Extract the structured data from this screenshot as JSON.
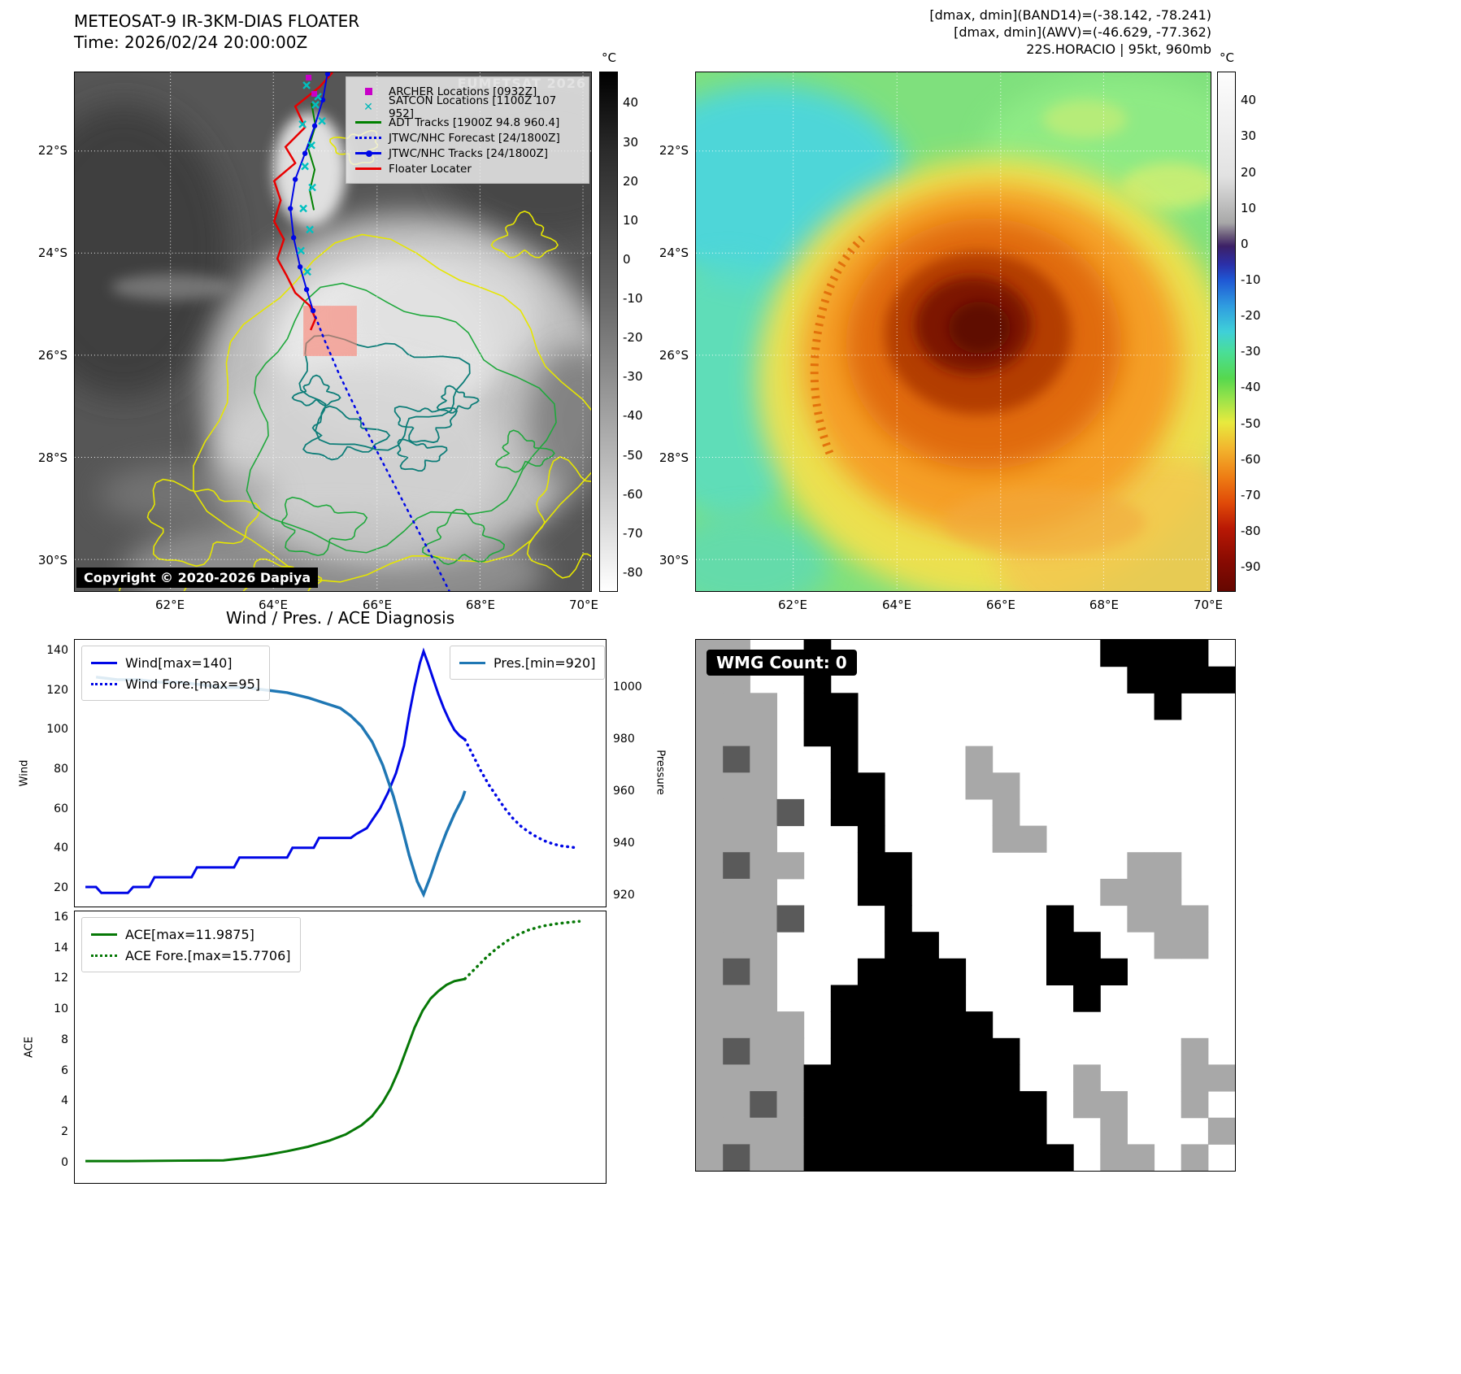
{
  "meteosat_panel": {
    "title": "METEOSAT-9 IR-3KM-DIAS FLOATER",
    "time": "Time: 2026/02/24 20:00:00Z",
    "watermark": "EUMETSAT 2026",
    "copyright": "Copyright © 2020-2026 Dapiya",
    "colorbar": {
      "unit": "°C",
      "vmax": 48,
      "vmin": -85,
      "ticks": [
        40,
        30,
        20,
        10,
        0,
        -10,
        -20,
        -30,
        -40,
        -50,
        -60,
        -70,
        -80
      ]
    },
    "lat_ticks": [
      "22°S",
      "24°S",
      "26°S",
      "28°S",
      "30°S"
    ],
    "lon_ticks": [
      "62°E",
      "64°E",
      "66°E",
      "68°E",
      "70°E"
    ],
    "legend": [
      {
        "label": "ARCHER Locations [0932Z]",
        "marker": "square",
        "color": "#c800c8"
      },
      {
        "label": "SATCON Locations [1100Z 107 952]",
        "marker": "x",
        "color": "#00b8b8"
      },
      {
        "label": "ADT Tracks [1900Z 94.8 960.4]",
        "marker": "line",
        "color": "#008000"
      },
      {
        "label": "JTWC/NHC Forecast [24/1800Z]",
        "marker": "dotted",
        "color": "#0007e6"
      },
      {
        "label": "JTWC/NHC Tracks [24/1800Z]",
        "marker": "line-dot",
        "color": "#0007e6"
      },
      {
        "label": "Floater Locater",
        "marker": "line",
        "color": "#e80000"
      }
    ]
  },
  "ir_panel": {
    "header": [
      "[dmax, dmin](BAND14)=(-38.142, -78.241)",
      "[dmax, dmin](AWV)=(-46.629, -77.362)",
      "22S.HORACIO | 95kt, 960mb"
    ],
    "colorbar": {
      "unit": "°C",
      "vmax": 48,
      "vmin": -97,
      "ticks": [
        40,
        30,
        20,
        10,
        0,
        -10,
        -20,
        -30,
        -40,
        -50,
        -60,
        -70,
        -80,
        -90
      ]
    },
    "lat_ticks": [
      "22°S",
      "24°S",
      "26°S",
      "28°S",
      "30°S"
    ],
    "lon_ticks": [
      "62°E",
      "64°E",
      "66°E",
      "68°E",
      "70°E"
    ]
  },
  "wmg_panel": {
    "label": "WMG Count: 0",
    "palette": {
      ".": "#ffffff",
      "g": "#a8a8a8",
      "G": "#5a5a5a",
      "#": "#000000"
    },
    "grid": [
      "gg..#..........####.",
      "gg..#...........####",
      "ggg.##...........#..",
      "ggg.##..............",
      "gGg..#....g.........",
      "ggg..##...gg........",
      "gggG.##....g........",
      "ggg...#....gg.......",
      "gGgg..##........gg..",
      "ggg...##.......ggg..",
      "gggG...#.....#..ggg.",
      "ggg....##....##..gg.",
      "gGg...####...###....",
      "ggg..#####....#.....",
      "gggg.######.........",
      "gGgg.#######......g.",
      "gggg########..g...gg",
      "ggGg#########.gg..g.",
      "gggg#########..g...g",
      "gGgg##########.gg.g."
    ]
  },
  "chart_data": [
    {
      "type": "line",
      "title": "Wind / Pres. / ACE Diagnosis",
      "ylabel_left": "Wind",
      "ylabel_right": "Pressure",
      "xlim": [
        0,
        100
      ],
      "ylim_left": [
        10.1,
        145.8
      ],
      "yticks_left": [
        20,
        40,
        60,
        80,
        100,
        120,
        140
      ],
      "ylim_right": [
        915.3,
        1018.4
      ],
      "yticks_right": [
        920,
        940,
        960,
        980,
        1000
      ],
      "series": [
        {
          "name": "Wind[max=140]",
          "color": "#0007e6",
          "style": "solid",
          "axis": "left",
          "width": 3,
          "x": [
            2,
            4,
            5,
            10,
            11,
            14,
            15,
            22,
            23,
            30,
            31,
            40,
            41,
            45,
            46,
            52,
            53,
            55,
            56,
            57.5,
            59,
            60.5,
            62,
            63,
            64,
            65,
            65.7,
            66.5,
            67.5,
            68.5,
            69.5,
            70.5,
            71.5,
            72.5,
            73.5
          ],
          "y": [
            20,
            20,
            17,
            17,
            20,
            20,
            25,
            25,
            30,
            30,
            35,
            35,
            40,
            40,
            45,
            45,
            47,
            50,
            54,
            60,
            68,
            78,
            92,
            108,
            122,
            134,
            140,
            134,
            126,
            118,
            111,
            105,
            100,
            97,
            95
          ]
        },
        {
          "name": "Wind Fore.[max=95]",
          "color": "#0007e6",
          "style": "dotted",
          "axis": "left",
          "width": 3.5,
          "x": [
            73.5,
            75,
            76.5,
            78,
            79.5,
            81,
            82.5,
            84,
            85.5,
            87,
            88.5,
            90,
            91.5,
            93,
            94.5
          ],
          "y": [
            95,
            87,
            79,
            72,
            66,
            60,
            55,
            51,
            48,
            45.5,
            43.5,
            42,
            41,
            40.5,
            40
          ]
        },
        {
          "name": "Pres.[min=920]",
          "color": "#1f77b4",
          "style": "solid",
          "axis": "right",
          "width": 3.5,
          "x": [
            4,
            8,
            12,
            16,
            20,
            24,
            28,
            32,
            36,
            40,
            44,
            47,
            50,
            52,
            54,
            56,
            58,
            60,
            61.5,
            63,
            64.5,
            65.7,
            67,
            68.5,
            70,
            71.5,
            73,
            73.5
          ],
          "y": [
            1004,
            1003,
            1003,
            1002,
            1002,
            1001,
            1000,
            1000,
            999,
            998,
            996,
            994,
            992,
            989,
            985,
            979,
            970,
            958,
            947,
            935,
            925,
            920,
            927,
            936,
            944,
            951,
            957,
            960
          ]
        }
      ]
    },
    {
      "type": "line",
      "ylabel_left": "ACE",
      "xlim": [
        0,
        100
      ],
      "ylim_left": [
        -1.38,
        16.42
      ],
      "yticks_left": [
        0,
        2,
        4,
        6,
        8,
        10,
        12,
        14,
        16
      ],
      "series": [
        {
          "name": "ACE[max=11.9875]",
          "color": "#067806",
          "style": "solid",
          "axis": "left",
          "width": 3,
          "x": [
            2,
            10,
            20,
            28,
            32,
            36,
            40,
            44,
            48,
            51,
            54,
            56,
            58,
            59.5,
            61,
            62.5,
            64,
            65.5,
            67,
            68.5,
            70,
            71.5,
            73.5
          ],
          "y": [
            0.05,
            0.05,
            0.08,
            0.1,
            0.25,
            0.45,
            0.7,
            1.0,
            1.4,
            1.8,
            2.4,
            3.0,
            3.9,
            4.8,
            6.0,
            7.4,
            8.8,
            9.9,
            10.7,
            11.2,
            11.6,
            11.85,
            11.99
          ]
        },
        {
          "name": "ACE Fore.[max=15.7706]",
          "color": "#067806",
          "style": "dotted",
          "axis": "left",
          "width": 3.5,
          "x": [
            73.5,
            75.5,
            77.5,
            79.5,
            81.5,
            83.5,
            85.5,
            88,
            90.5,
            93,
            95
          ],
          "y": [
            12.0,
            12.7,
            13.4,
            14.0,
            14.5,
            14.9,
            15.2,
            15.45,
            15.6,
            15.7,
            15.77
          ]
        }
      ]
    }
  ]
}
